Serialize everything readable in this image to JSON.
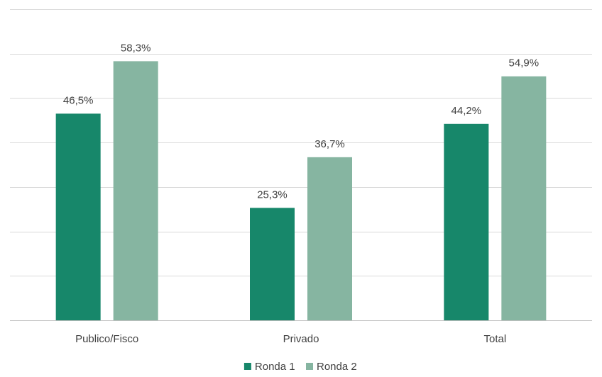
{
  "chart_data": {
    "type": "bar",
    "title": "",
    "xlabel": "",
    "ylabel": "",
    "categories": [
      "Publico/Fisco",
      "Privado",
      "Total"
    ],
    "series": [
      {
        "name": "Ronda 1",
        "values": [
          46.5,
          25.3,
          44.2
        ],
        "labels": [
          "46,5%",
          "25,3%",
          "44,2%"
        ],
        "color": "#17876a"
      },
      {
        "name": "Ronda 2",
        "values": [
          58.3,
          36.7,
          54.9
        ],
        "labels": [
          "58,3%",
          "36,7%",
          "54,9%"
        ],
        "color": "#86b5a1"
      }
    ],
    "ylim": [
      0,
      70
    ],
    "y_gridlines": [
      0,
      10,
      20,
      30,
      40,
      50,
      60,
      70
    ],
    "y_tick_labels_shown": false,
    "grid": true,
    "legend_position": "bottom"
  }
}
